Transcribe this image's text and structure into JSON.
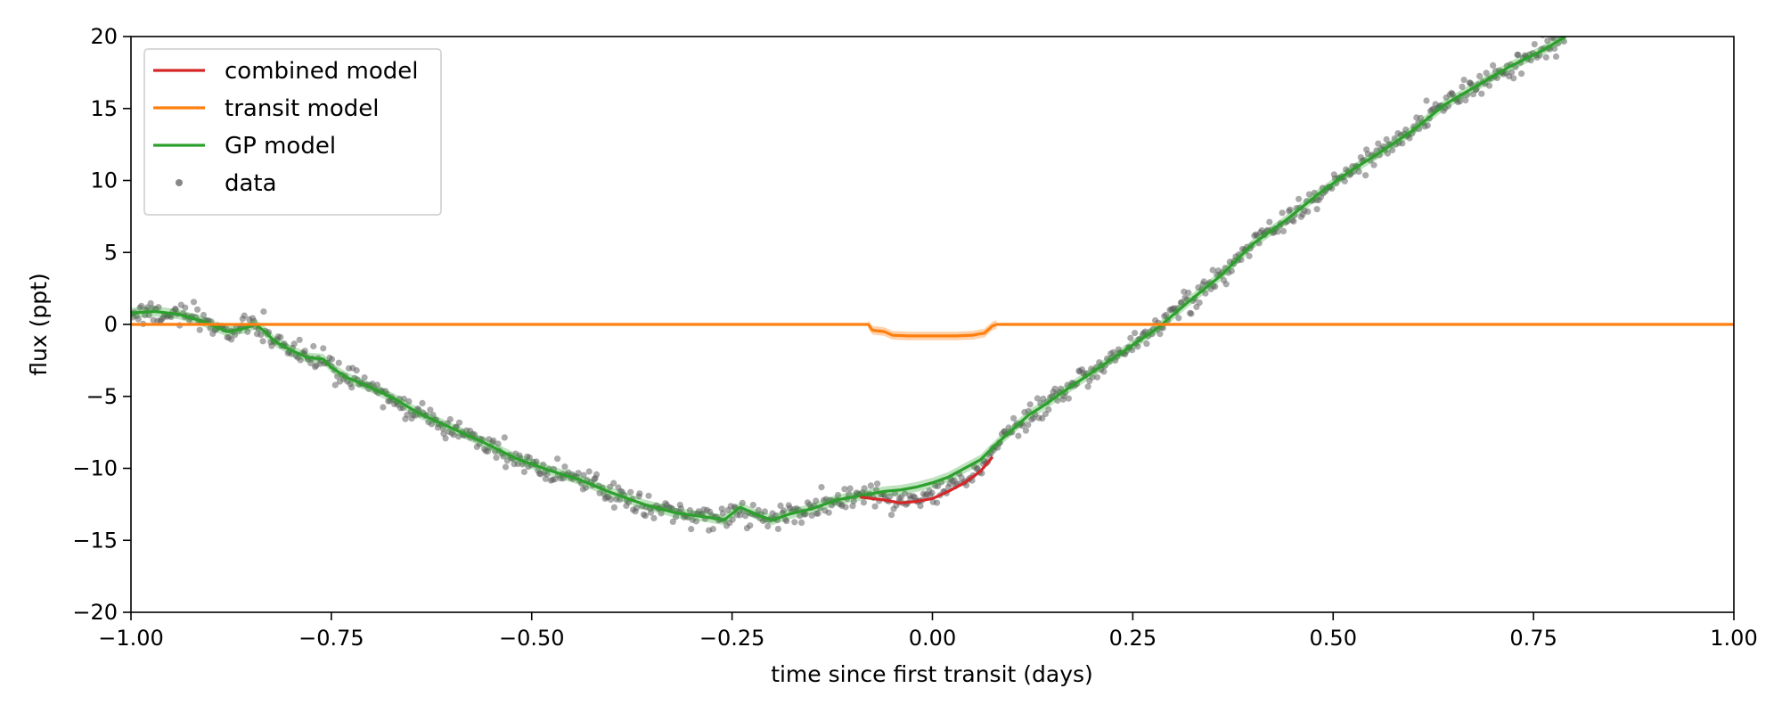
{
  "chart_data": {
    "type": "line",
    "title": "",
    "xlabel": "time since first transit (days)",
    "ylabel": "flux (ppt)",
    "xlim": [
      -1.0,
      1.0
    ],
    "ylim": [
      -20,
      20
    ],
    "x_ticks": [
      -1.0,
      -0.75,
      -0.5,
      -0.25,
      0.0,
      0.25,
      0.5,
      0.75,
      1.0
    ],
    "x_tick_labels": [
      "−1.00",
      "−0.75",
      "−0.50",
      "−0.25",
      "0.00",
      "0.25",
      "0.50",
      "0.75",
      "1.00"
    ],
    "y_ticks": [
      -20,
      -15,
      -10,
      -5,
      0,
      5,
      10,
      15,
      20
    ],
    "y_tick_labels": [
      "−20",
      "−15",
      "−10",
      "−5",
      "0",
      "5",
      "10",
      "15",
      "20"
    ],
    "grid": false,
    "legend_position": "top-left",
    "colors": {
      "combined": "#d62728",
      "transit": "#ff7f0e",
      "gp": "#2ca02c",
      "data": "#555555"
    },
    "legend": [
      {
        "label": "combined model",
        "kind": "line",
        "color": "#d62728"
      },
      {
        "label": "transit model",
        "kind": "line",
        "color": "#ff7f0e"
      },
      {
        "label": "GP model",
        "kind": "line",
        "color": "#2ca02c"
      },
      {
        "label": "data",
        "kind": "dot",
        "color": "#888888"
      }
    ],
    "series": [
      {
        "name": "combined model",
        "color": "#d62728",
        "x": [
          -0.09,
          -0.06,
          -0.04,
          -0.02,
          0.0,
          0.02,
          0.04,
          0.06,
          0.075
        ],
        "y": [
          -12.0,
          -12.2,
          -12.4,
          -12.3,
          -12.1,
          -11.6,
          -11.0,
          -10.2,
          -9.2
        ]
      },
      {
        "name": "transit model",
        "color": "#ff7f0e",
        "x": [
          -1.0,
          -0.08,
          -0.075,
          -0.06,
          -0.05,
          -0.03,
          0.0,
          0.03,
          0.05,
          0.065,
          0.075,
          0.08,
          1.0
        ],
        "y": [
          0,
          0,
          -0.4,
          -0.5,
          -0.75,
          -0.8,
          -0.8,
          -0.8,
          -0.75,
          -0.6,
          -0.1,
          0,
          0
        ],
        "band_halfwidth": 0.3,
        "band_xrange": [
          -0.08,
          0.08
        ]
      },
      {
        "name": "GP model",
        "color": "#2ca02c",
        "x": [
          -1.0,
          -0.97,
          -0.94,
          -0.91,
          -0.88,
          -0.86,
          -0.845,
          -0.835,
          -0.82,
          -0.8,
          -0.78,
          -0.76,
          -0.75,
          -0.73,
          -0.7,
          -0.67,
          -0.64,
          -0.6,
          -0.56,
          -0.52,
          -0.48,
          -0.44,
          -0.4,
          -0.36,
          -0.32,
          -0.28,
          -0.26,
          -0.24,
          -0.22,
          -0.2,
          -0.18,
          -0.15,
          -0.12,
          -0.1,
          -0.08,
          -0.06,
          -0.04,
          -0.02,
          0.0,
          0.02,
          0.04,
          0.06,
          0.08,
          0.1,
          0.12,
          0.14,
          0.16,
          0.2,
          0.24,
          0.28,
          0.32,
          0.36,
          0.4,
          0.44,
          0.48,
          0.52,
          0.56,
          0.6,
          0.64,
          0.68,
          0.72,
          0.76,
          0.79
        ],
        "y": [
          0.8,
          0.9,
          0.7,
          0.2,
          -0.5,
          -0.3,
          0.0,
          -0.4,
          -1.2,
          -1.8,
          -2.3,
          -2.4,
          -3.0,
          -3.7,
          -4.4,
          -5.2,
          -6.2,
          -7.2,
          -8.2,
          -9.3,
          -10.1,
          -10.8,
          -11.7,
          -12.5,
          -13.1,
          -13.4,
          -13.6,
          -12.7,
          -13.2,
          -13.6,
          -13.2,
          -12.8,
          -12.2,
          -12.0,
          -11.8,
          -11.6,
          -11.5,
          -11.3,
          -11.0,
          -10.6,
          -10.0,
          -9.4,
          -8.3,
          -7.3,
          -6.3,
          -5.6,
          -4.8,
          -3.3,
          -1.8,
          -0.3,
          1.6,
          3.4,
          5.6,
          7.2,
          9.0,
          10.6,
          12.0,
          13.5,
          15.3,
          16.6,
          17.9,
          19.0,
          20.0
        ],
        "band_halfwidth": 0.35
      },
      {
        "name": "data",
        "color": "#555555",
        "x_range": [
          -1.0,
          0.79
        ],
        "n_points": 900,
        "scatter_ppt": 0.4
      }
    ]
  }
}
